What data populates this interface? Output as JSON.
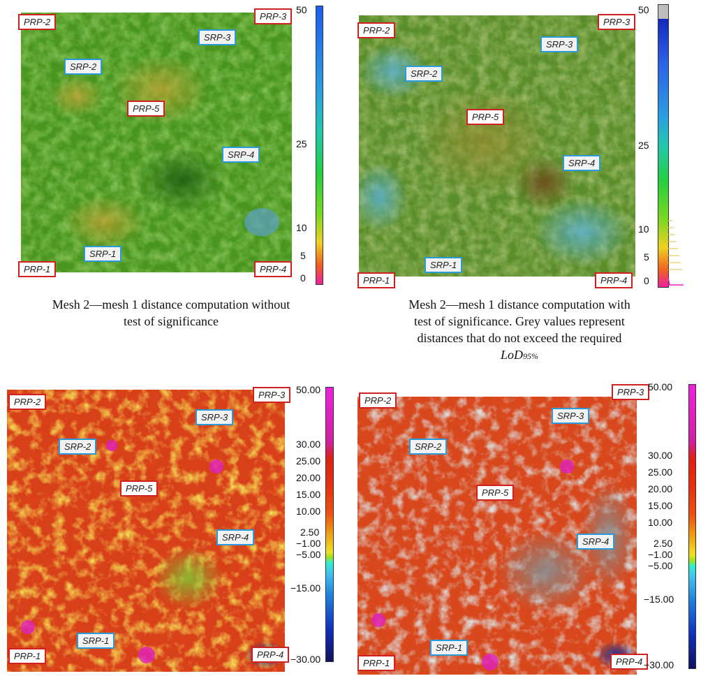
{
  "panels": [
    {
      "id": "p1",
      "labels": {
        "prp1": "PRP-1",
        "prp2": "PRP-2",
        "prp3": "PRP-3",
        "prp4": "PRP-4",
        "prp5": "PRP-5",
        "srp1": "SRP-1",
        "srp2": "SRP-2",
        "srp3": "SRP-3",
        "srp4": "SRP-4"
      },
      "scale": {
        "ticks": [
          "50",
          "25",
          "10",
          "5",
          "0"
        ]
      },
      "caption": {
        "line1": "Mesh 2—mesh 1 distance computation without",
        "line2": "test of significance"
      }
    },
    {
      "id": "p2",
      "labels": {
        "prp1": "PRP-1",
        "prp2": "PRP-2",
        "prp3": "PRP-3",
        "prp4": "PRP-4",
        "prp5": "PRP-5",
        "srp1": "SRP-1",
        "srp2": "SRP-2",
        "srp3": "SRP-3",
        "srp4": "SRP-4"
      },
      "scale": {
        "ticks": [
          "50",
          "25",
          "10",
          "5",
          "0"
        ]
      },
      "caption": {
        "line1": "Mesh 2—mesh 1 distance computation with",
        "line2": "test of significance. Grey values represent",
        "line3": "distances that do not exceed the required",
        "lod": "LoD",
        "lod_sub": "95%"
      }
    },
    {
      "id": "p3",
      "labels": {
        "prp1": "PRP-1",
        "prp2": "PRP-2",
        "prp3": "PRP-3",
        "prp4": "PRP-4",
        "prp5": "PRP-5",
        "srp1": "SRP-1",
        "srp2": "SRP-2",
        "srp3": "SRP-3",
        "srp4": "SRP-4"
      },
      "scale": {
        "ticks": [
          "50.00",
          "30.00",
          "25.00",
          "20.00",
          "15.00",
          "10.00",
          "2.50",
          "−1.00",
          "−5.00",
          "−15.00",
          "−30.00"
        ]
      }
    },
    {
      "id": "p4",
      "labels": {
        "prp1": "PRP-1",
        "prp2": "PRP-2",
        "prp3": "PRP-3",
        "prp4": "PRP-4",
        "prp5": "PRP-5",
        "srp1": "SRP-1",
        "srp2": "SRP-2",
        "srp3": "SRP-3",
        "srp4": "SRP-4"
      },
      "scale": {
        "ticks": [
          "50.00",
          "30.00",
          "25.00",
          "20.00",
          "15.00",
          "10.00",
          "2.50",
          "−1.00",
          "−5.00",
          "−15.00",
          "−30.00"
        ]
      }
    }
  ],
  "colors": {
    "prp_border": "#d02020",
    "srp_border": "#2a9ad8",
    "p1_base": "#3f8f1e",
    "p2_base": "#4a8a2a",
    "p3_base": "#d83a14",
    "p4_base": "#d84a1c"
  }
}
